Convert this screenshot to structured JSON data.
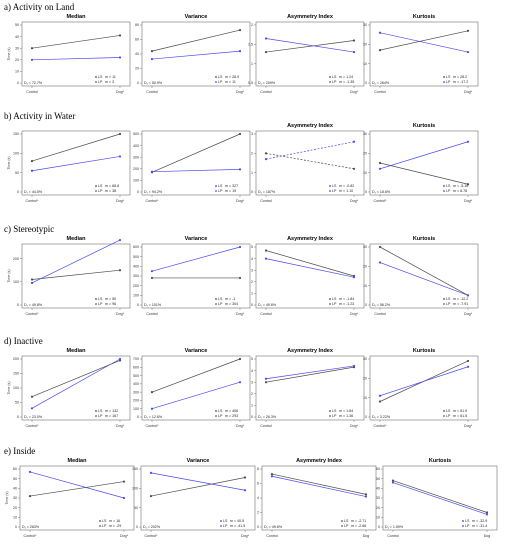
{
  "colors": {
    "group_ls": "#4a4a4a",
    "group_lp": "#4a4af0"
  },
  "chart_data": [
    {
      "section": "a)",
      "section_title": "Activity on Land",
      "row": 0,
      "col": 0,
      "type": "line",
      "title": "Median",
      "categories": [
        "Control",
        "Dog*"
      ],
      "ylabel": "Time (s)",
      "ylim": [
        0,
        50
      ],
      "yticks": [
        0,
        10,
        20,
        30,
        40,
        50
      ],
      "series": [
        {
          "name": "LS",
          "values": [
            30,
            41
          ],
          "style": "solid",
          "m": "m = 11"
        },
        {
          "name": "LP",
          "values": [
            20,
            22
          ],
          "style": "solid",
          "m": "m = 3"
        }
      ],
      "delta": "D₁ = 72.7%",
      "legend_position": "bottom-right"
    },
    {
      "section": "a)",
      "row": 0,
      "col": 1,
      "type": "line",
      "title": "Variance",
      "categories": [
        "Control",
        "Dog*"
      ],
      "ylim": [
        0,
        80
      ],
      "yticks": [
        0,
        20,
        40,
        60,
        80
      ],
      "series": [
        {
          "name": "LS",
          "values": [
            44,
            73
          ],
          "style": "solid",
          "m": "m = 28.9"
        },
        {
          "name": "LP",
          "values": [
            33,
            44
          ],
          "style": "solid",
          "m": "m = 11"
        }
      ],
      "delta": "D₁ = 50.9%",
      "legend_position": "bottom-right"
    },
    {
      "section": "a)",
      "row": 0,
      "col": 2,
      "type": "line",
      "title": "Asymmetry Index",
      "categories": [
        "Control",
        "Dog*"
      ],
      "ylim": [
        0.5,
        2
      ],
      "yticks": [
        0.5,
        1,
        1.5,
        2
      ],
      "series": [
        {
          "name": "LS",
          "values": [
            1.3,
            1.6
          ],
          "style": "solid",
          "m": "m = 1.24"
        },
        {
          "name": "LP",
          "values": [
            1.65,
            1.3
          ],
          "style": "solid",
          "m": "m = -1.35"
        }
      ],
      "delta": "D₁ = 209%",
      "legend_position": "bottom-right"
    },
    {
      "section": "a)",
      "row": 0,
      "col": 3,
      "type": "line",
      "title": "Kurtosis",
      "categories": [
        "Control",
        "Dog*"
      ],
      "ylim": [
        0,
        30
      ],
      "yticks": [
        0,
        10,
        20,
        30
      ],
      "series": [
        {
          "name": "LS",
          "values": [
            17,
            27
          ],
          "style": "solid",
          "m": "m = 28.2"
        },
        {
          "name": "LP",
          "values": [
            26,
            16
          ],
          "style": "solid",
          "m": "m = -17.2"
        }
      ],
      "delta": "D₁ = 264%",
      "legend_position": "bottom-right"
    },
    {
      "section": "b)",
      "section_title": "Activity in Water",
      "row": 1,
      "col": 0,
      "type": "line",
      "title": "",
      "categories": [
        "Control*",
        "Dog*"
      ],
      "ylabel": "Time (s)",
      "ylim": [
        0,
        150
      ],
      "yticks": [
        0,
        50,
        100,
        150
      ],
      "series": [
        {
          "name": "LS",
          "values": [
            80,
            150
          ],
          "style": "solid",
          "m": "m = 68.8"
        },
        {
          "name": "LP",
          "values": [
            55,
            92
          ],
          "style": "solid",
          "m": "m = 38"
        }
      ],
      "delta": "D₁ = 44.5%",
      "legend_position": "bottom-right"
    },
    {
      "section": "b)",
      "row": 1,
      "col": 1,
      "type": "line",
      "title": "",
      "categories": [
        "Control*",
        "Dog*"
      ],
      "ylim": [
        0,
        500
      ],
      "yticks": [
        0,
        100,
        200,
        300,
        400,
        500
      ],
      "series": [
        {
          "name": "LS",
          "values": [
            170,
            500
          ],
          "style": "solid",
          "m": "m = 327"
        },
        {
          "name": "LP",
          "values": [
            175,
            195
          ],
          "style": "solid",
          "m": "m = 19"
        }
      ],
      "delta": "D₁ = 94.2%",
      "legend_position": "bottom-right"
    },
    {
      "section": "b)",
      "row": 1,
      "col": 2,
      "type": "line",
      "title": "Asymmetry Index",
      "categories": [
        "Control",
        "Dog*"
      ],
      "ylim": [
        0,
        3
      ],
      "yticks": [
        0,
        1,
        2,
        3
      ],
      "series": [
        {
          "name": "LS",
          "values": [
            2.0,
            1.2
          ],
          "style": "dashed",
          "m": "m = -0.82"
        },
        {
          "name": "LP",
          "values": [
            1.7,
            2.6
          ],
          "style": "dashed",
          "m": "m = 1.10"
        }
      ],
      "delta": "D₁ = 187%",
      "legend_position": "bottom-right"
    },
    {
      "section": "b)",
      "row": 1,
      "col": 3,
      "type": "line",
      "title": "Kurtosis",
      "categories": [
        "Control*",
        "Dog*"
      ],
      "ylim": [
        0,
        30
      ],
      "yticks": [
        0,
        10,
        20,
        30
      ],
      "series": [
        {
          "name": "LS",
          "values": [
            15,
            4
          ],
          "style": "solid",
          "m": "m = -5.16"
        },
        {
          "name": "LP",
          "values": [
            12,
            26
          ],
          "style": "solid",
          "m": "m = 8.78"
        }
      ],
      "delta": "D₁ = 18.6%",
      "legend_position": "bottom-right"
    },
    {
      "section": "c)",
      "section_title": "Stereotypic",
      "row": 2,
      "col": 0,
      "type": "line",
      "title": "Median",
      "categories": [
        "Control*",
        "Dog*"
      ],
      "ylabel": "Time (s)",
      "ylim": [
        0,
        250
      ],
      "yticks": [
        0,
        100,
        200
      ],
      "series": [
        {
          "name": "LS",
          "values": [
            110,
            150
          ],
          "style": "solid",
          "m": "m = 50"
        },
        {
          "name": "LP",
          "values": [
            95,
            280
          ],
          "style": "solid",
          "m": "m = 96"
        }
      ],
      "delta": "D₁ = 49.8%",
      "legend_position": "bottom-right"
    },
    {
      "section": "c)",
      "row": 2,
      "col": 1,
      "type": "line",
      "title": "Variance",
      "categories": [
        "Control",
        "Dog*"
      ],
      "ylim": [
        0,
        600
      ],
      "yticks": [
        0,
        100,
        200,
        300,
        400,
        500,
        600
      ],
      "series": [
        {
          "name": "LS",
          "values": [
            280,
            280
          ],
          "style": "solid",
          "m": "m = -1"
        },
        {
          "name": "LP",
          "values": [
            350,
            600
          ],
          "style": "solid",
          "m": "m = 304"
        }
      ],
      "delta": "D₁ = 101%",
      "legend_position": "bottom-right"
    },
    {
      "section": "c)",
      "row": 2,
      "col": 2,
      "type": "line",
      "title": "Asymmetry Index",
      "categories": [
        "Control",
        "Dog*"
      ],
      "ylim": [
        0,
        5
      ],
      "yticks": [
        0,
        1,
        2,
        3,
        4,
        5
      ],
      "series": [
        {
          "name": "LS",
          "values": [
            4.7,
            2.5
          ],
          "style": "solid",
          "m": "m = -1.84"
        },
        {
          "name": "LP",
          "values": [
            4.0,
            2.4
          ],
          "style": "solid",
          "m": "m = -1.23"
        }
      ],
      "delta": "D₁ = 49.6%",
      "legend_position": "bottom-right"
    },
    {
      "section": "c)",
      "row": 2,
      "col": 3,
      "type": "line",
      "title": "Kurtosis",
      "categories": [
        "Control",
        "Dog*"
      ],
      "ylim": [
        0,
        30
      ],
      "yticks": [
        0,
        10,
        20,
        30
      ],
      "series": [
        {
          "name": "LS",
          "values": [
            30,
            5
          ],
          "style": "solid",
          "m": "m = -12.2"
        },
        {
          "name": "LP",
          "values": [
            22,
            5
          ],
          "style": "solid",
          "m": "m = -7.91"
        }
      ],
      "delta": "D₁ = 56.2%",
      "legend_position": "bottom-right"
    },
    {
      "section": "d)",
      "section_title": "Inactive",
      "row": 3,
      "col": 0,
      "type": "line",
      "title": "Median",
      "categories": [
        "Control*",
        "Dog*"
      ],
      "ylabel": "Time (s)",
      "ylim": [
        0,
        200
      ],
      "yticks": [
        0,
        50,
        100,
        150,
        200
      ],
      "series": [
        {
          "name": "LS",
          "values": [
            70,
            195
          ],
          "style": "solid",
          "m": "m = 132"
        },
        {
          "name": "LP",
          "values": [
            30,
            200
          ],
          "style": "solid",
          "m": "m = 167"
        }
      ],
      "delta": "D₁ = 23.0%",
      "legend_position": "bottom-right"
    },
    {
      "section": "d)",
      "row": 3,
      "col": 1,
      "type": "line",
      "title": "Variance",
      "categories": [
        "Control*",
        "Dog*"
      ],
      "ylim": [
        0,
        700
      ],
      "yticks": [
        0,
        100,
        200,
        300,
        400,
        500,
        600,
        700
      ],
      "series": [
        {
          "name": "LS",
          "values": [
            300,
            700
          ],
          "style": "solid",
          "m": "m = 406"
        },
        {
          "name": "LP",
          "values": [
            100,
            420
          ],
          "style": "solid",
          "m": "m = 293"
        }
      ],
      "delta": "D₁ = 12.6%",
      "legend_position": "bottom-right"
    },
    {
      "section": "d)",
      "row": 3,
      "col": 2,
      "type": "line",
      "title": "Asymmetry Index",
      "categories": [
        "Control",
        "Dog*"
      ],
      "ylim": [
        0,
        5
      ],
      "yticks": [
        0,
        1,
        2,
        3,
        4,
        5
      ],
      "series": [
        {
          "name": "LS",
          "values": [
            3.0,
            4.3
          ],
          "style": "solid",
          "m": "m = 1.84"
        },
        {
          "name": "LP",
          "values": [
            3.3,
            4.4
          ],
          "style": "solid",
          "m": "m = 1.36"
        }
      ],
      "delta": "D₁ = 26.3%",
      "legend_position": "bottom-right"
    },
    {
      "section": "d)",
      "row": 3,
      "col": 3,
      "type": "line",
      "title": "Kurtosis",
      "categories": [
        "Control*",
        "Dog*"
      ],
      "ylim": [
        0,
        30
      ],
      "yticks": [
        0,
        10,
        20,
        30
      ],
      "series": [
        {
          "name": "LS",
          "values": [
            8,
            29
          ],
          "style": "solid",
          "m": "m = 81.9"
        },
        {
          "name": "LP",
          "values": [
            11,
            26
          ],
          "style": "solid",
          "m": "m = 61.5"
        }
      ],
      "delta": "D₁ = 3.22%",
      "legend_position": "bottom-right"
    },
    {
      "section": "e)",
      "section_title": "Inside",
      "row": 4,
      "col": 0,
      "type": "line",
      "title": "Median",
      "categories": [
        "Control*",
        "Dog*"
      ],
      "ylabel": "Time (s)",
      "ylim": [
        0,
        60
      ],
      "yticks": [
        0,
        10,
        20,
        30,
        40,
        50,
        60
      ],
      "series": [
        {
          "name": "LS",
          "values": [
            32,
            47
          ],
          "style": "solid",
          "m": "m = 16"
        },
        {
          "name": "LP",
          "values": [
            57,
            30
          ],
          "style": "solid",
          "m": "m = -29"
        }
      ],
      "delta": "D₁ = 283%",
      "legend_position": "bottom-right"
    },
    {
      "section": "e)",
      "row": 4,
      "col": 1,
      "type": "line",
      "title": "Variance",
      "categories": [
        "Control*",
        "Dog*"
      ],
      "ylim": [
        0,
        150
      ],
      "yticks": [
        0,
        50,
        100,
        150
      ],
      "series": [
        {
          "name": "LS",
          "values": [
            80,
            128
          ],
          "style": "solid",
          "m": "m = 40.5"
        },
        {
          "name": "LP",
          "values": [
            140,
            95
          ],
          "style": "solid",
          "m": "m = -41.5"
        }
      ],
      "delta": "D₁ = 202%",
      "legend_position": "bottom-right"
    },
    {
      "section": "e)",
      "row": 4,
      "col": 2,
      "type": "line",
      "title": "Asymmetry Index",
      "categories": [
        "Control",
        "Dog"
      ],
      "ylim": [
        0,
        8
      ],
      "yticks": [
        0,
        2,
        4,
        6,
        8
      ],
      "series": [
        {
          "name": "LS",
          "values": [
            7.3,
            4.5
          ],
          "style": "solid",
          "m": "m = -2.71"
        },
        {
          "name": "LP",
          "values": [
            7.0,
            4.2
          ],
          "style": "solid",
          "m": "m = -2.66"
        }
      ],
      "delta": "D₁ = 49.6%",
      "legend_position": "bottom-right"
    },
    {
      "section": "e)",
      "row": 4,
      "col": 3,
      "type": "line",
      "title": "Kurtosis",
      "categories": [
        "Control",
        "Dog"
      ],
      "ylim": [
        0,
        60
      ],
      "yticks": [
        0,
        10,
        20,
        30,
        40,
        50,
        60
      ],
      "series": [
        {
          "name": "LS",
          "values": [
            48,
            15
          ],
          "style": "solid",
          "m": "m = -32.9"
        },
        {
          "name": "LP",
          "values": [
            46,
            13
          ],
          "style": "solid",
          "m": "m = -31.4"
        }
      ],
      "delta": "D₁ = 1.59%",
      "legend_position": "bottom-right"
    }
  ]
}
